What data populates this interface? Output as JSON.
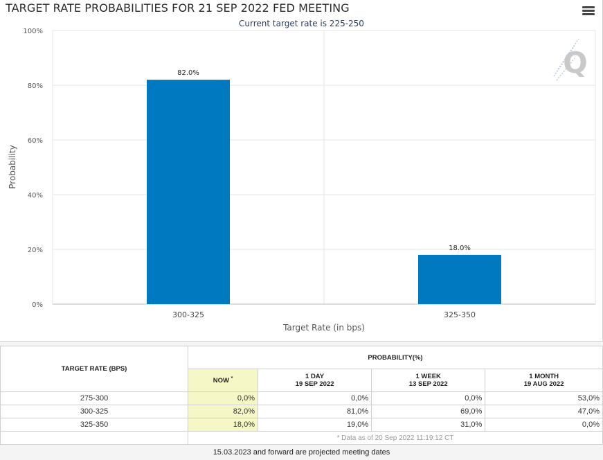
{
  "chart_data": {
    "type": "bar",
    "title": "TARGET RATE PROBABILITIES FOR 21 SEP 2022 FED MEETING",
    "subtitle": "Current target rate is 225-250",
    "categories": [
      "300-325",
      "325-350"
    ],
    "values": [
      82.0,
      18.0
    ],
    "data_labels": [
      "82.0%",
      "18.0%"
    ],
    "xlabel": "Target Rate (in bps)",
    "ylabel": "Probability",
    "ylim": [
      0,
      100
    ],
    "yticks": [
      "0%",
      "20%",
      "40%",
      "60%",
      "80%",
      "100%"
    ],
    "grid": true,
    "bar_color": "#0079c1"
  },
  "toolbar": {
    "menu_icon": "hamburger-menu-icon"
  },
  "watermark": {
    "icon": "cme-q-logo-icon"
  },
  "table": {
    "rate_header": "TARGET RATE (BPS)",
    "prob_header": "PROBABILITY(%)",
    "columns": [
      {
        "label": "NOW",
        "sub": ""
      },
      {
        "label": "1 DAY",
        "sub": "19 SEP 2022"
      },
      {
        "label": "1 WEEK",
        "sub": "13 SEP 2022"
      },
      {
        "label": "1 MONTH",
        "sub": "19 AUG 2022"
      }
    ],
    "now_marker": "*",
    "rows": [
      {
        "rate": "275-300",
        "values": [
          "0,0%",
          "0,0%",
          "0,0%",
          "53,0%"
        ]
      },
      {
        "rate": "300-325",
        "values": [
          "82,0%",
          "81,0%",
          "69,0%",
          "47,0%"
        ]
      },
      {
        "rate": "325-350",
        "values": [
          "18,0%",
          "19,0%",
          "31,0%",
          "0,0%"
        ]
      }
    ],
    "footnote": "* Data as of 20 Sep 2022 11:19:12 CT",
    "now_highlight_color": "#f5f8c6"
  },
  "projected_note": "15.03.2023 and forward are projected meeting dates"
}
